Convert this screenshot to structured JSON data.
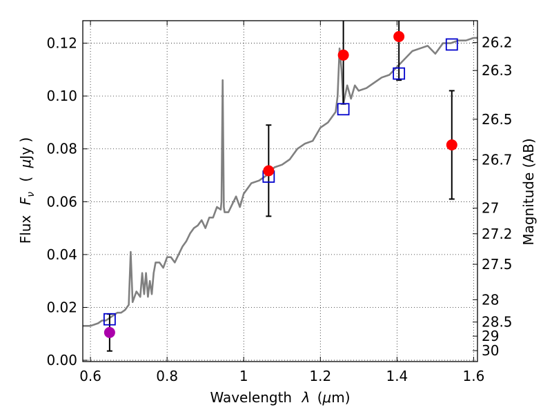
{
  "chart_data": {
    "type": "scatter",
    "title": "",
    "xlabel_text": "Wavelength",
    "xlabel_symbol": "λ",
    "xlabel_unit_open": "(",
    "xlabel_unit_mu": "μ",
    "xlabel_unit_rest": "m)",
    "ylabel_text": "Flux",
    "ylabel_symbol_F": "F",
    "ylabel_symbol_sub": "ν",
    "ylabel_unit_open": "(",
    "ylabel_unit_mu": "μ",
    "ylabel_unit_rest": "Jy )",
    "y2label": "Magnitude (AB)",
    "xlim": [
      0.58,
      1.61
    ],
    "ylim": [
      -0.0005,
      0.1285
    ],
    "grid": true,
    "x_ticks": [
      0.6,
      0.8,
      1.0,
      1.2,
      1.4,
      1.6
    ],
    "x_tick_labels": [
      "0.6",
      "0.8",
      "1",
      "1.2",
      "1.4",
      "1.6"
    ],
    "y_ticks": [
      0.0,
      0.02,
      0.04,
      0.06,
      0.08,
      0.1,
      0.12
    ],
    "y_tick_labels": [
      "0.00",
      "0.02",
      "0.04",
      "0.06",
      "0.08",
      "0.10",
      "0.12"
    ],
    "y2_ticks": [
      26.2,
      26.3,
      26.5,
      26.7,
      27.0,
      27.2,
      27.5,
      28.0,
      28.5,
      29.0,
      30.0
    ],
    "y2_tick_labels": [
      "26.2",
      "26.3",
      "26.5",
      "26.7",
      "27",
      "27.2",
      "27.5",
      "28",
      "28.5",
      "29",
      "30"
    ],
    "series": [
      {
        "kind": "line",
        "color": "#808080",
        "x": [
          0.58,
          0.6,
          0.62,
          0.63,
          0.64,
          0.65,
          0.66,
          0.67,
          0.68,
          0.69,
          0.695,
          0.7,
          0.705,
          0.71,
          0.72,
          0.73,
          0.735,
          0.74,
          0.745,
          0.75,
          0.755,
          0.76,
          0.765,
          0.77,
          0.78,
          0.79,
          0.8,
          0.81,
          0.82,
          0.83,
          0.84,
          0.85,
          0.86,
          0.87,
          0.88,
          0.89,
          0.9,
          0.91,
          0.92,
          0.93,
          0.94,
          0.942,
          0.945,
          0.948,
          0.95,
          0.96,
          0.97,
          0.98,
          0.99,
          1.0,
          1.02,
          1.04,
          1.06,
          1.08,
          1.1,
          1.12,
          1.14,
          1.16,
          1.18,
          1.2,
          1.22,
          1.24,
          1.245,
          1.25,
          1.255,
          1.26,
          1.27,
          1.28,
          1.29,
          1.3,
          1.32,
          1.34,
          1.36,
          1.38,
          1.4,
          1.42,
          1.44,
          1.46,
          1.48,
          1.5,
          1.52,
          1.54,
          1.56,
          1.58,
          1.6,
          1.61
        ],
        "values": [
          0.013,
          0.013,
          0.014,
          0.015,
          0.015,
          0.016,
          0.017,
          0.018,
          0.018,
          0.019,
          0.02,
          0.021,
          0.041,
          0.022,
          0.026,
          0.024,
          0.033,
          0.025,
          0.033,
          0.024,
          0.03,
          0.025,
          0.033,
          0.037,
          0.037,
          0.035,
          0.039,
          0.039,
          0.037,
          0.04,
          0.043,
          0.045,
          0.048,
          0.05,
          0.051,
          0.053,
          0.05,
          0.054,
          0.054,
          0.058,
          0.057,
          0.06,
          0.106,
          0.058,
          0.056,
          0.056,
          0.059,
          0.062,
          0.058,
          0.063,
          0.067,
          0.068,
          0.07,
          0.073,
          0.074,
          0.076,
          0.08,
          0.082,
          0.083,
          0.088,
          0.09,
          0.094,
          0.1,
          0.118,
          0.11,
          0.097,
          0.104,
          0.099,
          0.104,
          0.102,
          0.103,
          0.105,
          0.107,
          0.108,
          0.111,
          0.114,
          0.117,
          0.118,
          0.119,
          0.116,
          0.12,
          0.12,
          0.121,
          0.121,
          0.122,
          0.122
        ]
      },
      {
        "kind": "scatter",
        "marker": "square-open",
        "color": "#0000cc",
        "x": [
          0.65,
          1.065,
          1.26,
          1.405,
          1.543
        ],
        "values": [
          0.0155,
          0.0695,
          0.095,
          0.1085,
          0.1195
        ]
      },
      {
        "kind": "scatter",
        "marker": "circle",
        "color": "#ff0000",
        "x": [
          1.065,
          1.26,
          1.405,
          1.543
        ],
        "values": [
          0.0717,
          0.1155,
          0.1225,
          0.0815
        ],
        "yerr_low": [
          0.0545,
          0.097,
          0.106,
          0.061
        ],
        "yerr_high": [
          0.089,
          0.1285,
          0.1285,
          0.102
        ]
      },
      {
        "kind": "scatter",
        "marker": "circle",
        "color": "#aa00aa",
        "x": [
          0.65
        ],
        "values": [
          0.0105
        ],
        "yerr_low": [
          0.0035
        ],
        "yerr_high": [
          0.0175
        ]
      }
    ]
  }
}
